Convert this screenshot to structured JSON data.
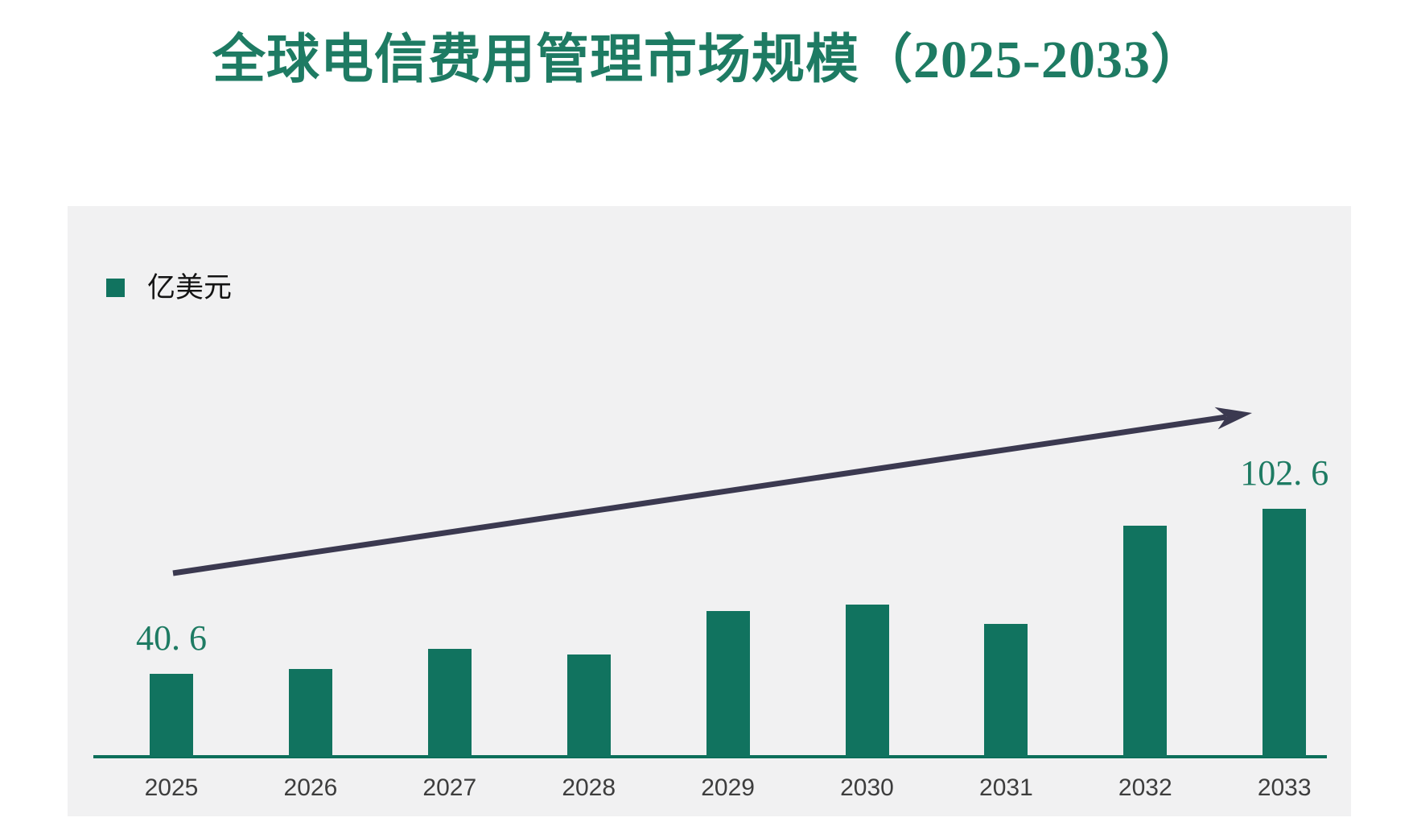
{
  "page": {
    "title": "全球电信费用管理市场规模（2025-2033）"
  },
  "chart_data": {
    "type": "bar",
    "title": "全球电信费用管理市场规模（2025-2033）",
    "unit": "亿美元",
    "legend": [
      {
        "label": "亿美元",
        "color": "#11735f"
      }
    ],
    "legend_position": "top-left",
    "categories": [
      "2025",
      "2026",
      "2027",
      "2028",
      "2029",
      "2030",
      "2031",
      "2032",
      "2033"
    ],
    "series": [
      {
        "name": "亿美元",
        "values": [
          40.6,
          42.5,
          50.0,
          47.9,
          64.1,
          66.7,
          59.4,
          96.2,
          102.6
        ]
      }
    ],
    "data_labels": [
      "40. 6",
      "",
      "",
      "",
      "",
      "",
      "",
      "",
      "102. 6"
    ],
    "xlabel": "",
    "ylabel": "",
    "y_baseline": 9.4,
    "grid": false,
    "annotations": [
      {
        "type": "trend-arrow",
        "direction": "up-right",
        "color": "#3b3950"
      }
    ],
    "colors": {
      "bar": "#11735f",
      "axis_line": "#0c6e5a",
      "title": "#1e7b63",
      "data_label": "#1e7b63",
      "category_label": "#3d3d3d",
      "legend_text": "#141414",
      "panel_background": "#f1f1f2",
      "page_background": "#ffffff",
      "arrow": "#3b3950"
    }
  }
}
